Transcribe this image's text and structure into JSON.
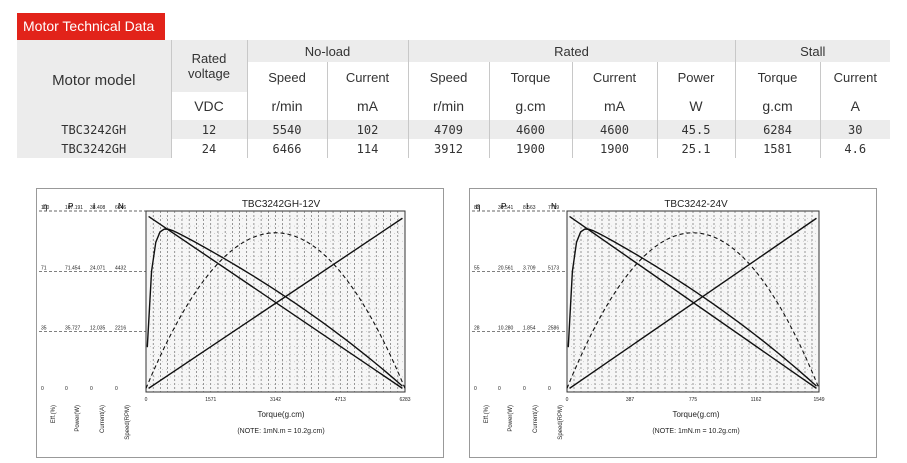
{
  "badge": "Motor Technical Data",
  "table": {
    "header": {
      "model": "Motor model",
      "rated_voltage": "Rated voltage",
      "noload": "No-load",
      "rated": "Rated",
      "stall": "Stall",
      "speed": "Speed",
      "current": "Current",
      "torque": "Torque",
      "power": "Power"
    },
    "units": {
      "voltage": "VDC",
      "noload_speed": "r/min",
      "noload_current": "mA",
      "rated_speed": "r/min",
      "rated_torque": "g.cm",
      "rated_current": "mA",
      "rated_power": "W",
      "stall_torque": "g.cm",
      "stall_current": "A"
    },
    "rows": [
      {
        "model": "TBC3242GH",
        "voltage": "12",
        "nl_speed": "5540",
        "nl_current": "102",
        "r_speed": "4709",
        "r_torque": "4600",
        "r_current": "4600",
        "r_power": "45.5",
        "s_torque": "6284",
        "s_current": "30"
      },
      {
        "model": "TBC3242GH",
        "voltage": "24",
        "nl_speed": "6466",
        "nl_current": "114",
        "r_speed": "3912",
        "r_torque": "1900",
        "r_current": "1900",
        "r_power": "25.1",
        "s_torque": "1581",
        "s_current": "4.6"
      }
    ]
  },
  "charts": [
    {
      "title": "TBC3242GH-12V",
      "xlabel": "Torque(g.cm)",
      "note": "(NOTE: 1mN.m = 10.2g.cm)",
      "xticks": [
        "0",
        "1571",
        "3142",
        "4713",
        "6283"
      ],
      "col_heads": [
        "η",
        "P",
        "I",
        "N"
      ],
      "y_rows": [
        [
          "100",
          "107.191",
          "38.408",
          "6646"
        ],
        [
          "71",
          "71.454",
          "24.071",
          "4432"
        ],
        [
          "35",
          "35.727",
          "12.035",
          "2216"
        ],
        [
          "0",
          "0",
          "0",
          "0"
        ]
      ],
      "axis_labels": [
        "Eff.(%)",
        "Power(W)",
        "Current(A)",
        "Speed(RPM)"
      ]
    },
    {
      "title": "TBC3242-24V",
      "xlabel": "Torque(g.cm)",
      "note": "(NOTE: 1mN.m = 10.2g.cm)",
      "xticks": [
        "0",
        "387",
        "775",
        "1162",
        "1549"
      ],
      "col_heads": [
        "η",
        "P",
        "I",
        "N"
      ],
      "y_rows": [
        [
          "83",
          "30.541",
          "8.563",
          "7759"
        ],
        [
          "55",
          "20.561",
          "3.709",
          "5173"
        ],
        [
          "28",
          "10.280",
          "1.854",
          "2586"
        ],
        [
          "0",
          "0",
          "0",
          "0"
        ]
      ],
      "axis_labels": [
        "Eff.(%)",
        "Power(W)",
        "Current(A)",
        "Speed(RPM)"
      ]
    }
  ]
}
